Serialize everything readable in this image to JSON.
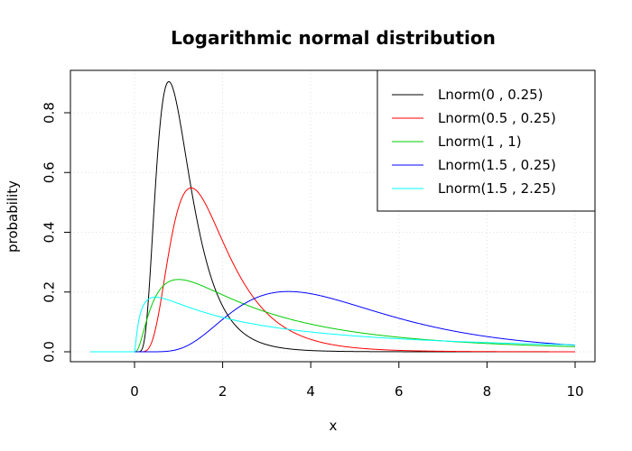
{
  "chart_data": {
    "type": "line",
    "title": "Logarithmic normal distribution",
    "xlabel": "x",
    "ylabel": "probability",
    "xlim": [
      -1,
      10
    ],
    "ylim": [
      0,
      0.9
    ],
    "x_ticks": [
      "0",
      "2",
      "4",
      "6",
      "8",
      "10"
    ],
    "y_ticks": [
      "0.0",
      "0.2",
      "0.4",
      "0.6",
      "0.8"
    ],
    "grid": true,
    "legend_position": "top-right",
    "series": [
      {
        "name": "Lnorm(0 , 0.25)",
        "meanlog": 0,
        "variance": 0.25,
        "color": "#000000"
      },
      {
        "name": "Lnorm(0.5 , 0.25)",
        "meanlog": 0.5,
        "variance": 0.25,
        "color": "#ff0000"
      },
      {
        "name": "Lnorm(1 , 1)",
        "meanlog": 1,
        "variance": 1,
        "color": "#00cc00"
      },
      {
        "name": "Lnorm(1.5 , 0.25)",
        "meanlog": 1.5,
        "variance": 0.25,
        "color": "#0000ff"
      },
      {
        "name": "Lnorm(1.5 , 2.25)",
        "meanlog": 1.5,
        "variance": 2.25,
        "color": "#00ffff"
      }
    ]
  }
}
